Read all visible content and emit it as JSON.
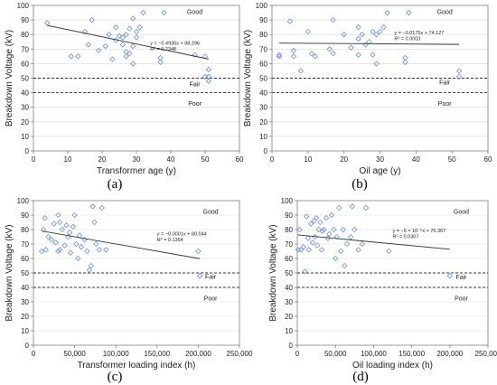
{
  "colors": {
    "marker": "#6b8fd4",
    "trend": "#333333",
    "threshold": "#333333",
    "frame": "#7f7f7f",
    "grid": "#d9d9d9"
  },
  "chart_data": [
    {
      "type": "scatter",
      "caption": "(a)",
      "xlabel": "Transformer age (y)",
      "ylabel": "Breakdown Voltage (kV)",
      "xlim": [
        0,
        60
      ],
      "ylim": [
        0,
        100
      ],
      "xticks": [
        0,
        10,
        20,
        30,
        40,
        50,
        60
      ],
      "yticks": [
        0,
        10,
        20,
        30,
        40,
        50,
        60,
        70,
        80,
        90,
        100
      ],
      "xtick_labels": [
        "0",
        "10",
        "20",
        "30",
        "40",
        "50",
        "60"
      ],
      "grid": true,
      "zones": [
        {
          "label": "Good",
          "x": 47,
          "y": 94
        },
        {
          "label": "Fair",
          "x": 47,
          "y": 44.5
        },
        {
          "label": "Poor",
          "x": 47,
          "y": 31
        }
      ],
      "thresholds": [
        50,
        40
      ],
      "trendline": {
        "slope": -0.4936,
        "intercept": 88.296
      },
      "equation": "y = −0.4936x + 88.296",
      "r2": "R² = 0.2348",
      "eq_pos": [
        34,
        73
      ],
      "r2_pos": [
        34,
        69
      ],
      "points": [
        [
          4,
          88
        ],
        [
          11,
          65
        ],
        [
          13,
          65
        ],
        [
          15,
          82
        ],
        [
          16,
          73
        ],
        [
          17,
          90
        ],
        [
          19,
          69
        ],
        [
          21,
          72
        ],
        [
          22,
          80
        ],
        [
          23,
          63
        ],
        [
          24,
          85
        ],
        [
          24,
          76
        ],
        [
          25,
          79
        ],
        [
          26,
          78
        ],
        [
          26,
          73
        ],
        [
          27,
          80
        ],
        [
          27,
          68
        ],
        [
          27,
          65
        ],
        [
          28,
          84
        ],
        [
          28,
          67
        ],
        [
          29,
          72
        ],
        [
          29,
          60
        ],
        [
          29,
          91
        ],
        [
          30,
          78
        ],
        [
          30,
          82
        ],
        [
          31,
          85
        ],
        [
          32,
          95
        ],
        [
          37,
          64
        ],
        [
          37,
          61
        ],
        [
          38,
          95
        ],
        [
          47,
          66
        ],
        [
          50,
          65
        ],
        [
          50,
          51
        ],
        [
          51,
          56
        ],
        [
          51,
          51
        ],
        [
          51,
          48
        ]
      ]
    },
    {
      "type": "scatter",
      "caption": "(b)",
      "xlabel": "Oil age (y)",
      "ylabel": "Breakdown Voltage (kV)",
      "xlim": [
        0,
        60
      ],
      "ylim": [
        0,
        100
      ],
      "xticks": [
        0,
        10,
        20,
        30,
        40,
        50,
        60
      ],
      "yticks": [
        0,
        10,
        20,
        30,
        40,
        50,
        60,
        70,
        80,
        90,
        100
      ],
      "xtick_labels": [
        "0",
        "10",
        "20",
        "30",
        "40",
        "50",
        "60"
      ],
      "grid": true,
      "zones": [
        {
          "label": "Good",
          "x": 48,
          "y": 94
        },
        {
          "label": "Fair",
          "x": 48,
          "y": 45.5
        },
        {
          "label": "Poor",
          "x": 48,
          "y": 31
        }
      ],
      "thresholds": [
        50,
        40
      ],
      "trendline": {
        "slope": -0.0175,
        "intercept": 74.127
      },
      "equation": "y = −0.0175x + 74.127",
      "r2": "R² = 0.0003",
      "eq_pos": [
        34,
        80
      ],
      "r2_pos": [
        34,
        76
      ],
      "points": [
        [
          2,
          65
        ],
        [
          2,
          66
        ],
        [
          5,
          89
        ],
        [
          6,
          69
        ],
        [
          6,
          65
        ],
        [
          8,
          55
        ],
        [
          10,
          82
        ],
        [
          11,
          67
        ],
        [
          12,
          65
        ],
        [
          16,
          70
        ],
        [
          17,
          90
        ],
        [
          17,
          67
        ],
        [
          20,
          80
        ],
        [
          22,
          71
        ],
        [
          24,
          85
        ],
        [
          24,
          77
        ],
        [
          24,
          66
        ],
        [
          25,
          80
        ],
        [
          26,
          73
        ],
        [
          27,
          75
        ],
        [
          28,
          82
        ],
        [
          28,
          66
        ],
        [
          29,
          80
        ],
        [
          29,
          60
        ],
        [
          30,
          82
        ],
        [
          31,
          85
        ],
        [
          32,
          95
        ],
        [
          37,
          64
        ],
        [
          37,
          61
        ],
        [
          38,
          95
        ],
        [
          52,
          55
        ],
        [
          52,
          51
        ]
      ]
    },
    {
      "type": "scatter",
      "caption": "(c)",
      "xlabel": "Transformer loading index (h)",
      "ylabel": "Breakdown Voltage (kV)",
      "xlim": [
        0,
        250000
      ],
      "ylim": [
        0,
        100
      ],
      "xticks": [
        0,
        50000,
        100000,
        150000,
        200000,
        250000
      ],
      "yticks": [
        0,
        10,
        20,
        30,
        40,
        50,
        60,
        70,
        80,
        90,
        100
      ],
      "xtick_labels": [
        "0",
        "50,000",
        "100,000",
        "150,000",
        "200,000",
        "250,000"
      ],
      "grid": true,
      "zones": [
        {
          "label": "Good",
          "x": 215000,
          "y": 91
        },
        {
          "label": "Fair",
          "x": 215000,
          "y": 46
        },
        {
          "label": "Poor",
          "x": 215000,
          "y": 31
        }
      ],
      "thresholds": [
        50,
        40
      ],
      "trendline": {
        "slope": -0.0001,
        "intercept": 80.044
      },
      "equation": "y = −0.0001x + 80.044",
      "r2": "R² = 0.1364",
      "eq_pos": [
        150000,
        76
      ],
      "r2_pos": [
        150000,
        72
      ],
      "points": [
        [
          10000,
          65
        ],
        [
          12000,
          80
        ],
        [
          14000,
          88
        ],
        [
          15000,
          66
        ],
        [
          18000,
          75
        ],
        [
          22000,
          73
        ],
        [
          25000,
          84
        ],
        [
          27000,
          71
        ],
        [
          30000,
          90
        ],
        [
          30000,
          65
        ],
        [
          32000,
          85
        ],
        [
          32000,
          66
        ],
        [
          35000,
          80
        ],
        [
          38000,
          69
        ],
        [
          40000,
          83
        ],
        [
          42000,
          75
        ],
        [
          44000,
          78
        ],
        [
          45000,
          64
        ],
        [
          48000,
          82
        ],
        [
          50000,
          90
        ],
        [
          52000,
          70
        ],
        [
          54000,
          60
        ],
        [
          56000,
          76
        ],
        [
          58000,
          68
        ],
        [
          62000,
          73
        ],
        [
          65000,
          65
        ],
        [
          68000,
          52
        ],
        [
          70000,
          55
        ],
        [
          72000,
          96
        ],
        [
          74000,
          85
        ],
        [
          76000,
          70
        ],
        [
          80000,
          66
        ],
        [
          83000,
          95
        ],
        [
          88000,
          66
        ],
        [
          200000,
          65
        ],
        [
          202000,
          48
        ]
      ]
    },
    {
      "type": "scatter",
      "caption": "(d)",
      "xlabel": "Oil loading index (h)",
      "ylabel": "Breakdown Voltage (kV)",
      "xlim": [
        0,
        250000
      ],
      "ylim": [
        0,
        100
      ],
      "xticks": [
        0,
        50000,
        100000,
        150000,
        200000,
        250000
      ],
      "yticks": [
        0,
        10,
        20,
        30,
        40,
        50,
        60,
        70,
        80,
        90,
        100
      ],
      "xtick_labels": [
        "0",
        "50,000",
        "100,000",
        "150,000",
        "200,000",
        "250,000"
      ],
      "grid": true,
      "zones": [
        {
          "label": "Good",
          "x": 215000,
          "y": 91
        },
        {
          "label": "Fair",
          "x": 215000,
          "y": 45.5
        },
        {
          "label": "Poor",
          "x": 215000,
          "y": 31
        }
      ],
      "thresholds": [
        50,
        40
      ],
      "trendline": {
        "slope": -5e-05,
        "intercept": 76.367
      },
      "equation": "y = −5 × 10⁻⁵x + 76.367",
      "r2": "R² = 0.0307",
      "eq_pos": [
        125000,
        78
      ],
      "r2_pos": [
        125000,
        74
      ],
      "points": [
        [
          1000,
          66
        ],
        [
          3000,
          80
        ],
        [
          5000,
          66
        ],
        [
          8000,
          68
        ],
        [
          10000,
          51
        ],
        [
          12000,
          89
        ],
        [
          14000,
          74
        ],
        [
          15000,
          66
        ],
        [
          18000,
          84
        ],
        [
          20000,
          71
        ],
        [
          22000,
          86
        ],
        [
          23000,
          75
        ],
        [
          25000,
          88
        ],
        [
          26000,
          69
        ],
        [
          28000,
          80
        ],
        [
          30000,
          85
        ],
        [
          32000,
          66
        ],
        [
          33000,
          79
        ],
        [
          35000,
          80
        ],
        [
          38000,
          88
        ],
        [
          40000,
          74
        ],
        [
          42000,
          77
        ],
        [
          45000,
          90
        ],
        [
          48000,
          80
        ],
        [
          50000,
          60
        ],
        [
          52000,
          75
        ],
        [
          55000,
          95
        ],
        [
          57000,
          65
        ],
        [
          60000,
          80
        ],
        [
          62000,
          55
        ],
        [
          65000,
          70
        ],
        [
          70000,
          75
        ],
        [
          72000,
          96
        ],
        [
          75000,
          80
        ],
        [
          80000,
          66
        ],
        [
          85000,
          70
        ],
        [
          90000,
          95
        ],
        [
          120000,
          65
        ],
        [
          200000,
          48
        ]
      ]
    }
  ]
}
